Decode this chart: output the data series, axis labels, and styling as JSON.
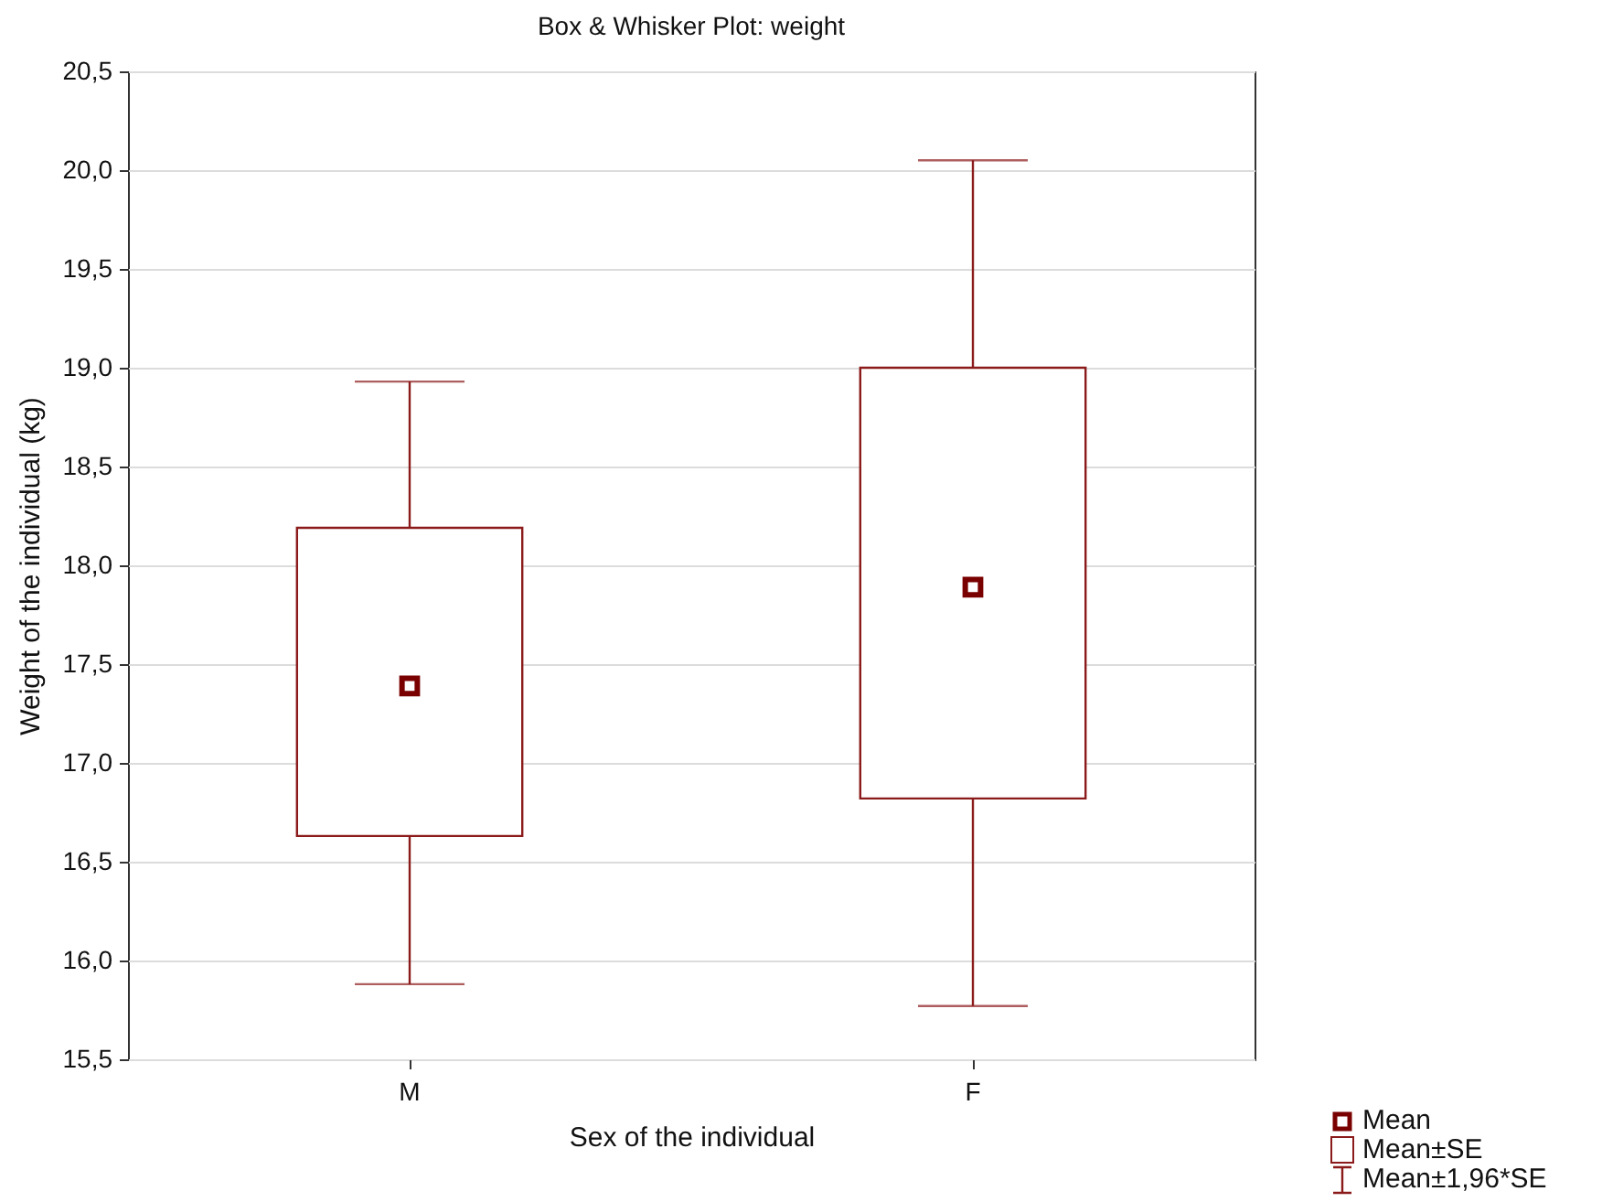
{
  "chart_data": {
    "type": "box",
    "title": "Box & Whisker Plot:   weight",
    "xlabel": "Sex of the individual",
    "ylabel": "Weight of the individual (kg)",
    "categories": [
      "M",
      "F"
    ],
    "color": "#8b1a1a",
    "boxes": [
      {
        "low": 15.88,
        "q1": 16.63,
        "median": 17.39,
        "q3": 18.19,
        "high": 18.93
      },
      {
        "low": 15.77,
        "q1": 16.82,
        "median": 17.89,
        "q3": 19.0,
        "high": 20.05
      }
    ],
    "ylim": [
      15.5,
      20.5
    ],
    "yticks": [
      {
        "value": 15.5,
        "label": "15,5"
      },
      {
        "value": 16,
        "label": "16,0"
      },
      {
        "value": 16.5,
        "label": "16,5"
      },
      {
        "value": 17,
        "label": "17,0"
      },
      {
        "value": 17.5,
        "label": "17,5"
      },
      {
        "value": 18,
        "label": "18,0"
      },
      {
        "value": 18.5,
        "label": "18,5"
      },
      {
        "value": 19,
        "label": "19,0"
      },
      {
        "value": 19.5,
        "label": "19,5"
      },
      {
        "value": 20,
        "label": "20,0"
      },
      {
        "value": 20.5,
        "label": "20,5"
      }
    ],
    "grid": "y",
    "marker": "square",
    "annotations": [
      "Mean",
      "Mean±SE",
      "Mean±1,96*SE"
    ]
  }
}
